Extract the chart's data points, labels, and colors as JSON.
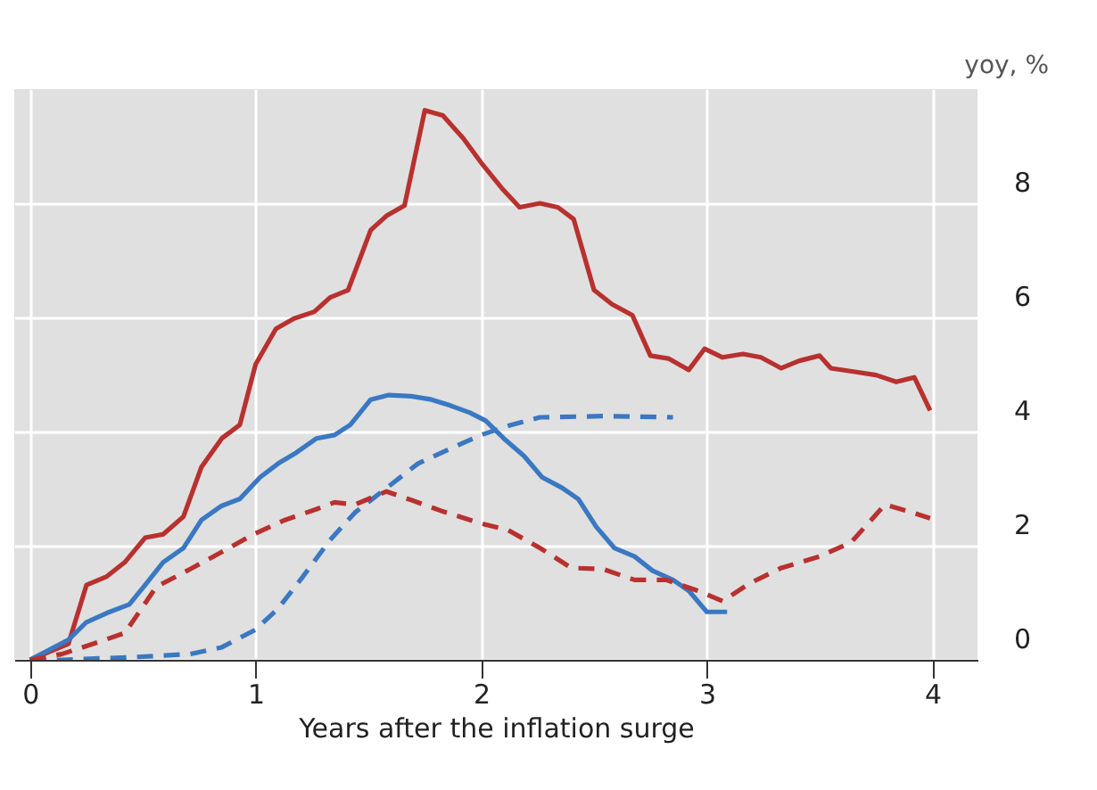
{
  "chart_data": {
    "type": "line",
    "xlabel": "Years after the inflation surge",
    "ylabel": "yoy, %",
    "xlim": [
      -0.07,
      4.2
    ],
    "xticks": [
      0,
      1,
      2,
      3,
      4
    ],
    "ylim": [
      0,
      10
    ],
    "yticks": [
      0,
      2,
      4,
      6,
      8
    ],
    "grid": true,
    "tick_labels": "xy",
    "series": [
      {
        "color": "#b8312f",
        "line_style": "solid",
        "x": [
          0,
          0.17,
          0.25,
          0.34,
          0.42,
          0.51,
          0.59,
          0.68,
          0.76,
          0.85,
          0.93,
          1.0,
          1.09,
          1.17,
          1.26,
          1.33,
          1.41,
          1.51,
          1.58,
          1.66,
          1.75,
          1.83,
          1.92,
          2.0,
          2.09,
          2.17,
          2.26,
          2.34,
          2.41,
          2.5,
          2.58,
          2.67,
          2.75,
          2.83,
          2.92,
          2.99,
          3.07,
          3.16,
          3.24,
          3.33,
          3.41,
          3.5,
          3.55,
          3.65,
          3.75,
          3.84,
          3.92,
          3.99
        ],
        "values": [
          0,
          0.28,
          1.31,
          1.46,
          1.71,
          2.14,
          2.2,
          2.51,
          3.38,
          3.88,
          4.12,
          5.18,
          5.8,
          5.98,
          6.1,
          6.35,
          6.48,
          7.53,
          7.78,
          7.96,
          9.63,
          9.54,
          9.14,
          8.71,
          8.27,
          7.93,
          8.0,
          7.93,
          7.72,
          6.48,
          6.23,
          6.04,
          5.33,
          5.28,
          5.08,
          5.45,
          5.3,
          5.36,
          5.3,
          5.11,
          5.24,
          5.33,
          5.11,
          5.05,
          4.99,
          4.87,
          4.95,
          4.37
        ]
      },
      {
        "color": "#3a78c2",
        "line_style": "solid",
        "x": [
          0,
          0.17,
          0.25,
          0.34,
          0.44,
          0.51,
          0.59,
          0.68,
          0.76,
          0.85,
          0.93,
          1.02,
          1.1,
          1.18,
          1.27,
          1.35,
          1.42,
          1.51,
          1.59,
          1.69,
          1.78,
          1.86,
          1.95,
          2.02,
          2.1,
          2.19,
          2.27,
          2.36,
          2.43,
          2.51,
          2.59,
          2.68,
          2.76,
          2.85,
          2.92,
          3.0,
          3.09
        ],
        "values": [
          0,
          0.35,
          0.66,
          0.82,
          0.97,
          1.31,
          1.71,
          1.96,
          2.45,
          2.7,
          2.82,
          3.2,
          3.44,
          3.63,
          3.88,
          3.94,
          4.12,
          4.56,
          4.64,
          4.62,
          4.56,
          4.46,
          4.33,
          4.19,
          3.88,
          3.57,
          3.2,
          3.01,
          2.82,
          2.33,
          1.96,
          1.81,
          1.56,
          1.4,
          1.21,
          0.84,
          0.84
        ]
      },
      {
        "color": "#3a78c2",
        "line_style": "dashed",
        "x": [
          0,
          0.14,
          0.42,
          0.71,
          0.85,
          1.0,
          1.1,
          1.21,
          1.33,
          1.44,
          1.58,
          1.72,
          1.89,
          2.0,
          2.12,
          2.26,
          2.54,
          2.85
        ],
        "values": [
          0,
          0,
          0.04,
          0.1,
          0.22,
          0.53,
          0.9,
          1.46,
          2.1,
          2.58,
          3.01,
          3.44,
          3.75,
          3.94,
          4.1,
          4.25,
          4.27,
          4.25
        ]
      },
      {
        "color": "#b8312f",
        "line_style": "dashed",
        "x": [
          0,
          0.14,
          0.28,
          0.42,
          0.56,
          0.71,
          0.85,
          0.99,
          1.13,
          1.27,
          1.35,
          1.44,
          1.58,
          1.69,
          1.83,
          2.0,
          2.12,
          2.26,
          2.4,
          2.54,
          2.68,
          2.82,
          2.96,
          3.07,
          3.19,
          3.33,
          3.5,
          3.64,
          3.79,
          3.92,
          3.99
        ],
        "values": [
          0,
          0.1,
          0.28,
          0.47,
          1.28,
          1.59,
          1.89,
          2.2,
          2.45,
          2.64,
          2.76,
          2.72,
          2.95,
          2.8,
          2.6,
          2.39,
          2.27,
          1.96,
          1.61,
          1.59,
          1.4,
          1.4,
          1.21,
          1.03,
          1.34,
          1.61,
          1.81,
          2.06,
          2.72,
          2.57,
          2.48
        ]
      }
    ]
  }
}
